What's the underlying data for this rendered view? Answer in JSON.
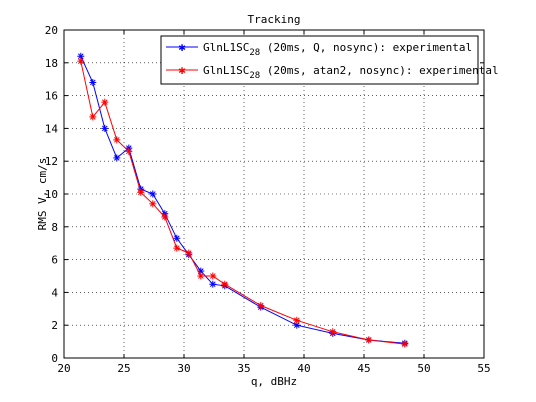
{
  "chart_data": {
    "type": "line",
    "title": "Tracking",
    "xlabel": "q, dBHz",
    "ylabel": "RMS V, cm/s",
    "xlim": [
      20,
      55
    ],
    "ylim": [
      0,
      20
    ],
    "xticks": [
      "20",
      "25",
      "30",
      "35",
      "40",
      "45",
      "50",
      "55"
    ],
    "yticks": [
      "0",
      "2",
      "4",
      "6",
      "8",
      "10",
      "12",
      "14",
      "16",
      "18",
      "20"
    ],
    "grid": true,
    "legend_position": "top-right",
    "series": [
      {
        "name_main": "GlnL1SC",
        "name_sub": "28",
        "name_rest": " (20ms, Q, nosync): experimental",
        "color": "#0000ff",
        "marker": "asterisk",
        "x": [
          21.4,
          22.4,
          23.4,
          24.4,
          25.4,
          26.4,
          27.4,
          28.4,
          29.4,
          30.4,
          31.4,
          32.4,
          33.4,
          36.4,
          39.4,
          42.4,
          45.4,
          48.4
        ],
        "y": [
          18.4,
          16.8,
          14.0,
          12.2,
          12.8,
          10.3,
          10.0,
          8.8,
          7.3,
          6.3,
          5.3,
          4.5,
          4.4,
          3.1,
          2.0,
          1.5,
          1.1,
          0.9
        ]
      },
      {
        "name_main": "GlnL1SC",
        "name_sub": "28",
        "name_rest": " (20ms, atan2, nosync): experimental",
        "color": "#ff0000",
        "marker": "asterisk",
        "x": [
          21.4,
          22.4,
          23.4,
          24.4,
          25.4,
          26.4,
          27.4,
          28.4,
          29.4,
          30.4,
          31.4,
          32.4,
          33.4,
          36.4,
          39.4,
          42.4,
          45.4,
          48.4
        ],
        "y": [
          18.1,
          14.7,
          15.6,
          13.3,
          12.6,
          10.1,
          9.4,
          8.6,
          6.7,
          6.4,
          5.0,
          5.0,
          4.5,
          3.2,
          2.3,
          1.6,
          1.1,
          0.85
        ]
      }
    ]
  }
}
